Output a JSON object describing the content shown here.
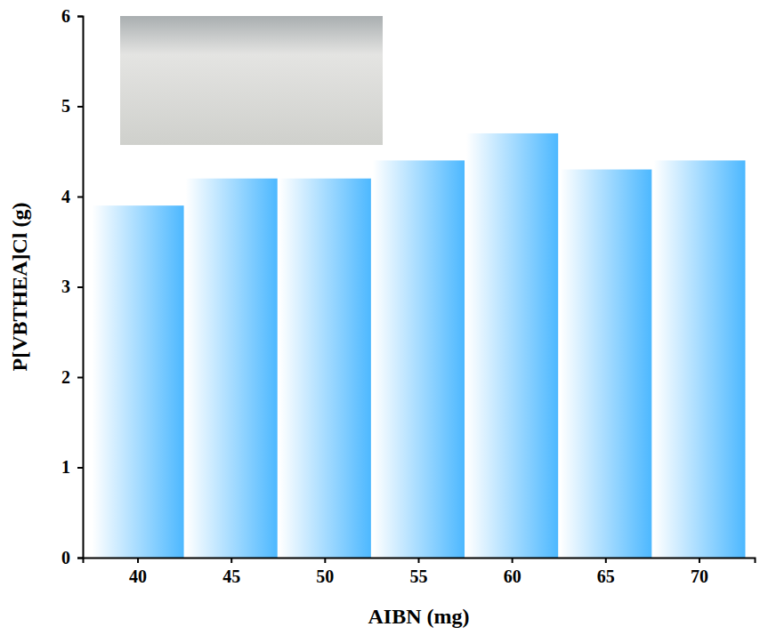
{
  "chart_data": {
    "type": "bar",
    "x_label": "AIBN (mg)",
    "y_label": "P[VBTHEA]Cl (g)",
    "categories": [
      "40",
      "45",
      "50",
      "55",
      "60",
      "65",
      "70"
    ],
    "values": [
      3.9,
      4.2,
      4.2,
      4.4,
      4.7,
      4.3,
      4.4
    ],
    "color": "#4db8ff",
    "ylim": [
      0,
      6
    ],
    "yticks": [
      0,
      1,
      2,
      3,
      4,
      5,
      6
    ],
    "grid": false
  }
}
